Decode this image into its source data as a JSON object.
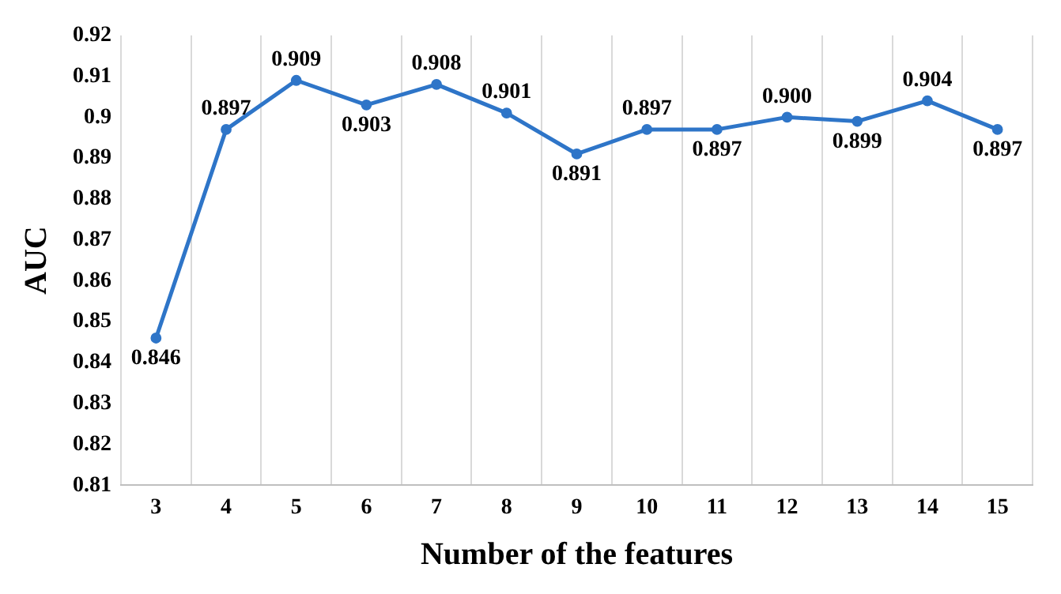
{
  "chart_data": {
    "type": "line",
    "xlabel": "Number of the features",
    "ylabel": "AUC",
    "categories": [
      "3",
      "4",
      "5",
      "6",
      "7",
      "8",
      "9",
      "10",
      "11",
      "12",
      "13",
      "14",
      "15"
    ],
    "series": [
      {
        "color": "#2e75c8",
        "values": [
          0.846,
          0.897,
          0.909,
          0.903,
          0.908,
          0.901,
          0.891,
          0.897,
          0.897,
          0.9,
          0.899,
          0.904,
          0.897
        ],
        "value_labels": [
          "0.846",
          "0.897",
          "0.909",
          "0.903",
          "0.908",
          "0.901",
          "0.891",
          "0.897",
          "0.897",
          "0.900",
          "0.899",
          "0.904",
          "0.897"
        ]
      }
    ],
    "ylim": [
      0.81,
      0.92
    ],
    "yticks": [
      0.81,
      0.82,
      0.83,
      0.84,
      0.85,
      0.86,
      0.87,
      0.88,
      0.89,
      0.9,
      0.91,
      0.92
    ],
    "grid": "x",
    "marker": "circle",
    "line_style": "solid",
    "legend": false
  }
}
